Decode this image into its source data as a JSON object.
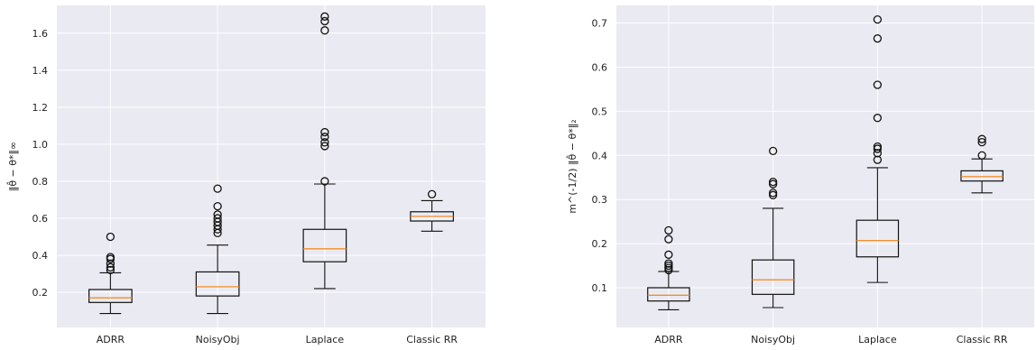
{
  "chart_data": [
    {
      "type": "box",
      "title": "",
      "xlabel": "",
      "ylabel": "‖θ̂ − θ*‖∞",
      "ylim": [
        0.01,
        1.75
      ],
      "yticks": [
        0.2,
        0.4,
        0.6,
        0.8,
        1.0,
        1.2,
        1.4,
        1.6
      ],
      "ytick_labels": [
        "0.2",
        "0.4",
        "0.6",
        "0.8",
        "1.0",
        "1.2",
        "1.4",
        "1.6"
      ],
      "grid": true,
      "categories": [
        "ADRR",
        "NoisyObj",
        "Laplace",
        "Classic RR"
      ],
      "boxes": [
        {
          "whislo": 0.085,
          "q1": 0.145,
          "med": 0.17,
          "q3": 0.215,
          "whishi": 0.305,
          "fliers": [
            0.32,
            0.335,
            0.355,
            0.38,
            0.39,
            0.5
          ]
        },
        {
          "whislo": 0.085,
          "q1": 0.18,
          "med": 0.23,
          "q3": 0.31,
          "whishi": 0.455,
          "fliers": [
            0.52,
            0.54,
            0.56,
            0.58,
            0.6,
            0.62,
            0.665,
            0.76
          ]
        },
        {
          "whislo": 0.22,
          "q1": 0.365,
          "med": 0.435,
          "q3": 0.54,
          "whishi": 0.785,
          "fliers": [
            0.8,
            0.99,
            1.01,
            1.04,
            1.065,
            1.615,
            1.665,
            1.69
          ]
        },
        {
          "whislo": 0.53,
          "q1": 0.585,
          "med": 0.61,
          "q3": 0.635,
          "whishi": 0.695,
          "fliers": [
            0.73
          ]
        }
      ]
    },
    {
      "type": "box",
      "title": "",
      "xlabel": "",
      "ylabel": "m^(-1/2) ‖θ̂ − θ*‖₂",
      "ylim": [
        0.01,
        0.74
      ],
      "yticks": [
        0.1,
        0.2,
        0.3,
        0.4,
        0.5,
        0.6,
        0.7
      ],
      "ytick_labels": [
        "0.1",
        "0.2",
        "0.3",
        "0.4",
        "0.5",
        "0.6",
        "0.7"
      ],
      "grid": true,
      "categories": [
        "ADRR",
        "NoisyObj",
        "Laplace",
        "Classic RR"
      ],
      "boxes": [
        {
          "whislo": 0.05,
          "q1": 0.07,
          "med": 0.083,
          "q3": 0.1,
          "whishi": 0.137,
          "fliers": [
            0.14,
            0.145,
            0.15,
            0.155,
            0.175,
            0.21,
            0.23
          ]
        },
        {
          "whislo": 0.055,
          "q1": 0.085,
          "med": 0.118,
          "q3": 0.163,
          "whishi": 0.28,
          "fliers": [
            0.31,
            0.315,
            0.335,
            0.34,
            0.41
          ]
        },
        {
          "whislo": 0.112,
          "q1": 0.17,
          "med": 0.207,
          "q3": 0.253,
          "whishi": 0.372,
          "fliers": [
            0.39,
            0.405,
            0.415,
            0.42,
            0.485,
            0.56,
            0.665,
            0.708
          ]
        },
        {
          "whislo": 0.315,
          "q1": 0.342,
          "med": 0.352,
          "q3": 0.365,
          "whishi": 0.392,
          "fliers": [
            0.4,
            0.43,
            0.437
          ]
        }
      ]
    }
  ]
}
